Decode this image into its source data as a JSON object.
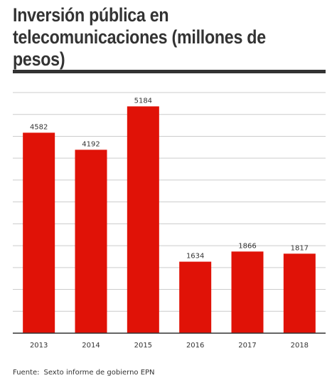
{
  "title": "Inversión pública en telecomunicaciones (millones de pesos)",
  "source_label": "Fuente:",
  "source_text": "Sexto informe de gobierno EPN",
  "colors": {
    "bar": "#e01207",
    "grid": "#cccccc",
    "axis": "#333333",
    "text": "#333333"
  },
  "chart_data": {
    "type": "bar",
    "title": "Inversión pública en telecomunicaciones (millones de pesos)",
    "categories": [
      "2013",
      "2014",
      "2015",
      "2016",
      "2017",
      "2018"
    ],
    "values": [
      4582,
      4192,
      5184,
      1634,
      1866,
      1817
    ],
    "xlabel": "",
    "ylabel": "",
    "ylim": [
      0,
      5500
    ],
    "grid": true,
    "legend": "none"
  }
}
